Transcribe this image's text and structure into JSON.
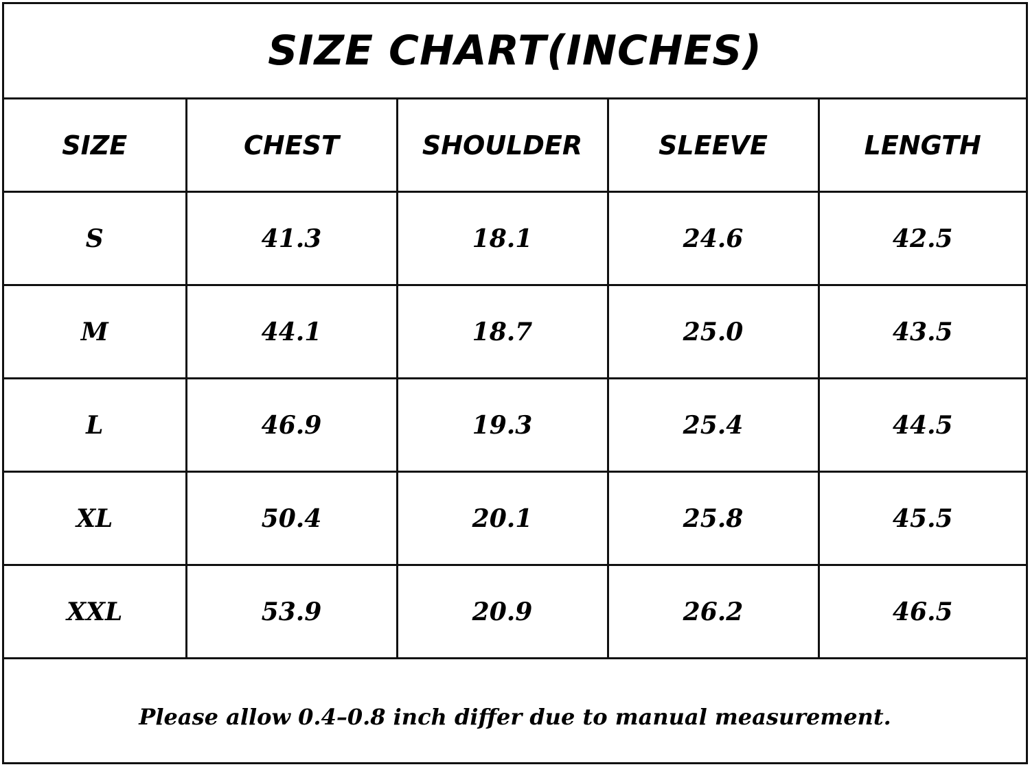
{
  "chart_data": {
    "type": "table",
    "title": "SIZE CHART(INCHES)",
    "columns": [
      "SIZE",
      "CHEST",
      "SHOULDER",
      "SLEEVE",
      "LENGTH"
    ],
    "rows": [
      [
        "S",
        "41.3",
        "18.1",
        "24.6",
        "42.5"
      ],
      [
        "M",
        "44.1",
        "18.7",
        "25.0",
        "43.5"
      ],
      [
        "L",
        "46.9",
        "19.3",
        "25.4",
        "44.5"
      ],
      [
        "XL",
        "50.4",
        "20.1",
        "25.8",
        "45.5"
      ],
      [
        "XXL",
        "53.9",
        "20.9",
        "26.2",
        "46.5"
      ]
    ],
    "note": "Please allow 0.4–0.8 inch differ due to manual measurement."
  }
}
